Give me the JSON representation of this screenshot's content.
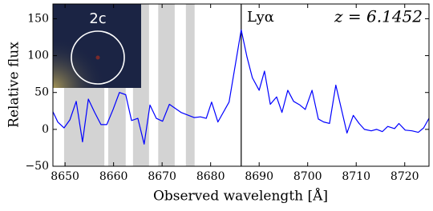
{
  "chart_data": {
    "type": "line",
    "xlabel": "Observed wavelength [Å]",
    "ylabel": "Relative flux",
    "x": [
      8647.5,
      8648.5,
      8649.8,
      8651.0,
      8652.3,
      8653.6,
      8654.8,
      8656.1,
      8657.4,
      8658.6,
      8659.9,
      8661.2,
      8662.5,
      8663.7,
      8665.0,
      8666.3,
      8667.5,
      8668.8,
      8670.1,
      8671.5,
      8673.9,
      8676.6,
      8677.9,
      8679.1,
      8680.2,
      8681.5,
      8683.8,
      8686.3,
      8687.5,
      8688.6,
      8690.0,
      8691.1,
      8692.3,
      8693.6,
      8694.7,
      8695.9,
      8697.1,
      8698.4,
      8699.5,
      8700.9,
      8702.2,
      8703.3,
      8704.5,
      8705.8,
      8708.1,
      8709.4,
      8710.6,
      8711.7,
      8713.1,
      8714.2,
      8715.4,
      8716.5,
      8717.9,
      8718.8,
      8720.1,
      8721.5,
      8722.8,
      8723.9,
      8725.0
    ],
    "values": [
      24,
      10,
      2,
      13,
      38,
      -17,
      41,
      23,
      6.5,
      6.5,
      27,
      50,
      47,
      12,
      15,
      -20,
      33,
      15,
      11,
      34,
      23,
      16,
      17,
      15,
      37,
      10,
      37,
      135,
      98,
      70,
      53,
      79,
      34,
      44,
      23,
      53,
      38,
      33,
      27,
      53,
      14,
      10,
      8,
      60,
      -5,
      19,
      8,
      0,
      -2,
      0,
      -3,
      4,
      1,
      8,
      -1,
      -2,
      -4,
      2,
      15
    ],
    "color": "#0000ff",
    "xlim": [
      8647.5,
      8725
    ],
    "ylim": [
      -50,
      170
    ],
    "xticks": [
      8650,
      8660,
      8670,
      8680,
      8690,
      8700,
      8710,
      8720
    ],
    "yticks": [
      {
        "value": -50,
        "label": "−50"
      },
      0,
      50,
      100,
      150
    ],
    "shaded_bands": [
      [
        8649.8,
        8658.1
      ],
      [
        8658.9,
        8662.5
      ],
      [
        8664.0,
        8667.3
      ],
      [
        8669.2,
        8672.6
      ],
      [
        8674.9,
        8676.7
      ]
    ],
    "band_color": "#d3d3d3",
    "vline": {
      "x": 8686.3,
      "label": "Lyα",
      "color": "#000000"
    },
    "annotation": "z = 6.1452",
    "inset_label": "2c"
  }
}
